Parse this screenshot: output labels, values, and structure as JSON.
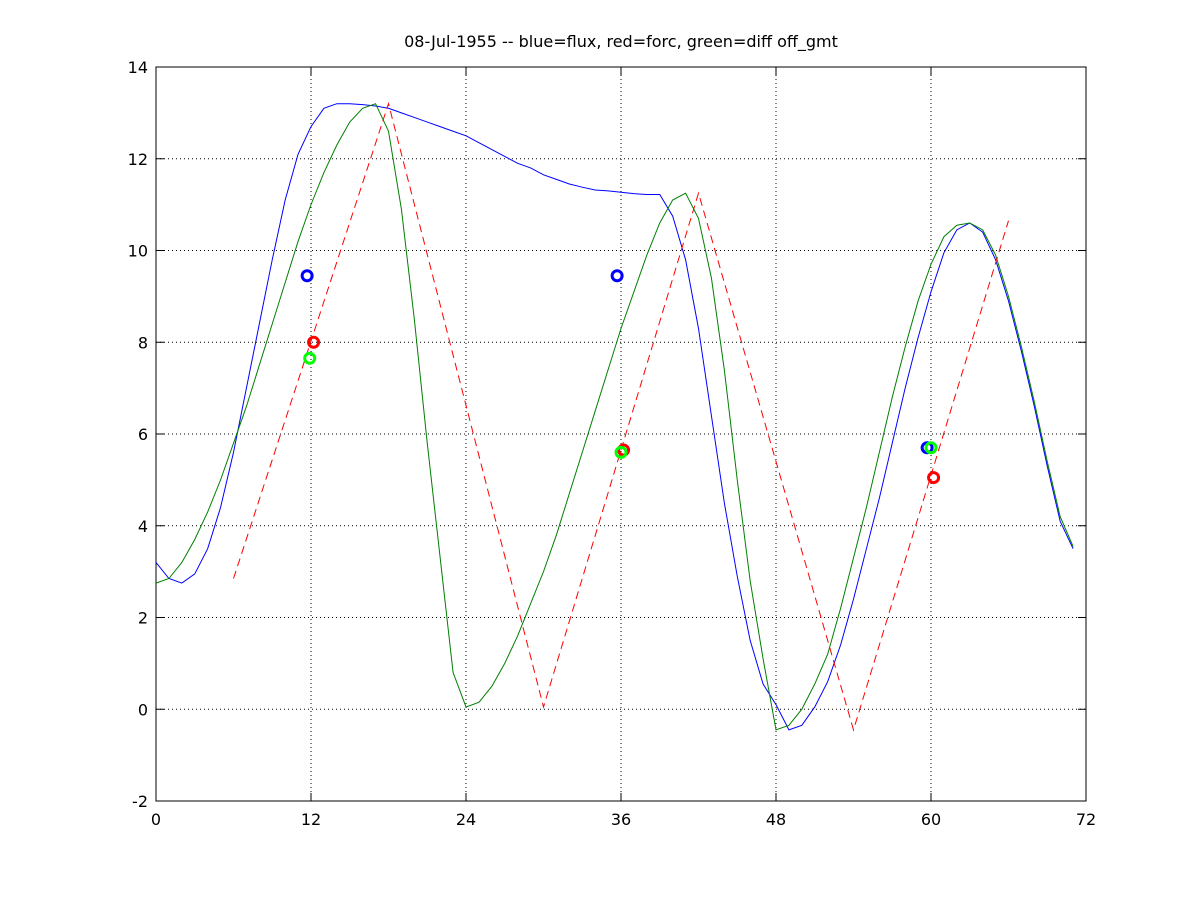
{
  "chart_data": {
    "type": "line",
    "title": "08-Jul-1955 -- blue=flux, red=forc, green=diff off_gmt",
    "xlim": [
      0,
      72
    ],
    "xticks": [
      0,
      12,
      24,
      36,
      48,
      60,
      72
    ],
    "ylim": [
      -2,
      14
    ],
    "yticks": [
      -2,
      0,
      2,
      4,
      6,
      8,
      10,
      12,
      14
    ],
    "grid": true,
    "series": [
      {
        "color": "#0000ff",
        "style": "solid",
        "x": [
          0,
          1,
          2,
          3,
          4,
          5,
          6,
          7,
          8,
          9,
          10,
          11,
          12,
          13,
          14,
          15,
          16,
          17,
          18,
          19,
          20,
          21,
          22,
          23,
          24,
          25,
          26,
          27,
          28,
          29,
          30,
          31,
          32,
          33,
          34,
          35,
          36,
          37,
          38,
          39,
          40,
          41,
          42,
          43,
          44,
          45,
          46,
          47,
          48,
          49,
          50,
          51,
          52,
          53,
          54,
          55,
          56,
          57,
          58,
          59,
          60,
          61,
          62,
          63,
          64,
          65,
          66,
          67,
          68,
          69,
          70,
          71
        ],
        "values": [
          3.2,
          2.85,
          2.75,
          2.95,
          3.5,
          4.4,
          5.6,
          7.0,
          8.4,
          9.8,
          11.1,
          12.1,
          12.7,
          13.1,
          13.2,
          13.2,
          13.18,
          13.15,
          13.1,
          13.0,
          12.9,
          12.8,
          12.7,
          12.6,
          12.5,
          12.35,
          12.2,
          12.05,
          11.9,
          11.8,
          11.65,
          11.55,
          11.45,
          11.38,
          11.32,
          11.3,
          11.27,
          11.24,
          11.22,
          11.22,
          10.75,
          9.8,
          8.3,
          6.4,
          4.5,
          2.9,
          1.5,
          0.55,
          0.1,
          -0.45,
          -0.35,
          0.05,
          0.6,
          1.4,
          2.4,
          3.5,
          4.6,
          5.8,
          7.0,
          8.1,
          9.1,
          9.95,
          10.45,
          10.6,
          10.4,
          9.8,
          8.9,
          7.8,
          6.6,
          5.3,
          4.1,
          3.5
        ]
      },
      {
        "color": "#007f00",
        "style": "solid",
        "x": [
          0,
          1,
          2,
          3,
          4,
          5,
          6,
          7,
          8,
          9,
          10,
          11,
          12,
          13,
          14,
          15,
          16,
          17,
          18,
          19,
          20,
          21,
          22,
          23,
          24,
          25,
          26,
          27,
          28,
          29,
          30,
          31,
          32,
          33,
          34,
          35,
          36,
          37,
          38,
          39,
          40,
          41,
          42,
          43,
          44,
          45,
          46,
          47,
          48,
          49,
          50,
          51,
          52,
          53,
          54,
          55,
          56,
          57,
          58,
          59,
          60,
          61,
          62,
          63,
          64,
          65,
          66,
          67,
          68,
          69,
          70,
          71
        ],
        "values": [
          2.75,
          2.85,
          3.2,
          3.7,
          4.3,
          5.0,
          5.8,
          6.6,
          7.5,
          8.4,
          9.3,
          10.2,
          11.0,
          11.7,
          12.3,
          12.8,
          13.1,
          13.2,
          12.6,
          10.9,
          8.5,
          5.8,
          3.3,
          0.8,
          0.05,
          0.15,
          0.5,
          1.0,
          1.6,
          2.3,
          3.0,
          3.8,
          4.7,
          5.6,
          6.5,
          7.4,
          8.3,
          9.1,
          9.9,
          10.6,
          11.1,
          11.25,
          10.7,
          9.4,
          7.4,
          5.0,
          2.8,
          1.1,
          -0.45,
          -0.35,
          0.0,
          0.55,
          1.2,
          2.2,
          3.3,
          4.4,
          5.6,
          6.8,
          7.9,
          8.9,
          9.7,
          10.3,
          10.55,
          10.6,
          10.45,
          9.9,
          9.0,
          7.9,
          6.7,
          5.4,
          4.2,
          3.55
        ]
      },
      {
        "color": "#ff0000",
        "style": "dashed",
        "x": [
          6,
          18,
          30,
          42,
          54,
          66
        ],
        "values": [
          2.85,
          13.2,
          0.05,
          11.25,
          -0.45,
          10.65
        ]
      },
      {
        "color": "#0000ff",
        "style": "circle",
        "x": [
          11.7,
          35.7,
          59.7
        ],
        "values": [
          9.45,
          9.45,
          5.7
        ]
      },
      {
        "color": "#ff0000",
        "style": "circle",
        "x": [
          12.2,
          36.2,
          60.2
        ],
        "values": [
          8.0,
          5.65,
          5.05
        ]
      },
      {
        "color": "#00ff00",
        "style": "circle",
        "x": [
          11.9,
          36.0,
          60.0
        ],
        "values": [
          7.65,
          5.6,
          5.7
        ]
      }
    ]
  }
}
